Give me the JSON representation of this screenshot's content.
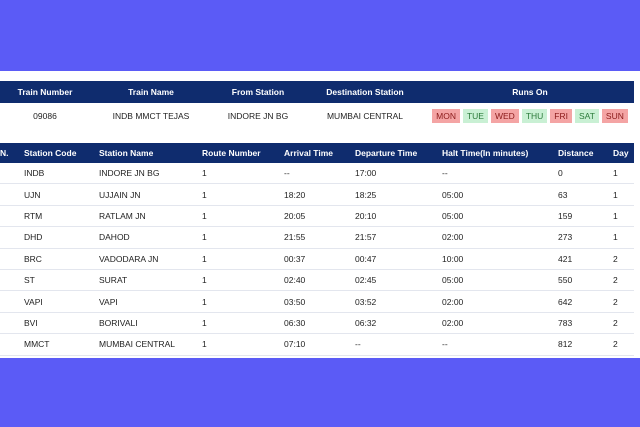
{
  "train_header": {
    "col_number": "Train Number",
    "col_name": "Train Name",
    "col_from": "From Station",
    "col_dest": "Destination Station",
    "col_runs": "Runs On"
  },
  "train_info": {
    "number": "09086",
    "name": "INDB MMCT TEJAS",
    "from": "INDORE JN BG",
    "destination": "MUMBAI CENTRAL",
    "days": [
      {
        "label": "MON",
        "runs": false
      },
      {
        "label": "TUE",
        "runs": true
      },
      {
        "label": "WED",
        "runs": false
      },
      {
        "label": "THU",
        "runs": true
      },
      {
        "label": "FRI",
        "runs": false
      },
      {
        "label": "SAT",
        "runs": true
      },
      {
        "label": "SUN",
        "runs": false
      }
    ]
  },
  "stations_header": {
    "no": "N.",
    "code": "Station Code",
    "name": "Station Name",
    "route": "Route Number",
    "arrival": "Arrival Time",
    "departure": "Departure Time",
    "halt": "Halt Time(In minutes)",
    "distance": "Distance",
    "day": "Day"
  },
  "stations": [
    {
      "code": "INDB",
      "name": "INDORE JN BG",
      "route": "1",
      "arrival": "--",
      "departure": "17:00",
      "halt": "--",
      "distance": "0",
      "day": "1"
    },
    {
      "code": "UJN",
      "name": "UJJAIN JN",
      "route": "1",
      "arrival": "18:20",
      "departure": "18:25",
      "halt": "05:00",
      "distance": "63",
      "day": "1"
    },
    {
      "code": "RTM",
      "name": "RATLAM JN",
      "route": "1",
      "arrival": "20:05",
      "departure": "20:10",
      "halt": "05:00",
      "distance": "159",
      "day": "1"
    },
    {
      "code": "DHD",
      "name": "DAHOD",
      "route": "1",
      "arrival": "21:55",
      "departure": "21:57",
      "halt": "02:00",
      "distance": "273",
      "day": "1"
    },
    {
      "code": "BRC",
      "name": "VADODARA JN",
      "route": "1",
      "arrival": "00:37",
      "departure": "00:47",
      "halt": "10:00",
      "distance": "421",
      "day": "2"
    },
    {
      "code": "ST",
      "name": "SURAT",
      "route": "1",
      "arrival": "02:40",
      "departure": "02:45",
      "halt": "05:00",
      "distance": "550",
      "day": "2"
    },
    {
      "code": "VAPI",
      "name": "VAPI",
      "route": "1",
      "arrival": "03:50",
      "departure": "03:52",
      "halt": "02:00",
      "distance": "642",
      "day": "2"
    },
    {
      "code": "BVI",
      "name": "BORIVALI",
      "route": "1",
      "arrival": "06:30",
      "departure": "06:32",
      "halt": "02:00",
      "distance": "783",
      "day": "2"
    },
    {
      "code": "MMCT",
      "name": "MUMBAI CENTRAL",
      "route": "1",
      "arrival": "07:10",
      "departure": "--",
      "halt": "--",
      "distance": "812",
      "day": "2"
    }
  ],
  "colors": {
    "background": "#5b5bf6",
    "header": "#0f2c6e",
    "day_on": "#c9f0d4",
    "day_off": "#f4a4a4"
  }
}
